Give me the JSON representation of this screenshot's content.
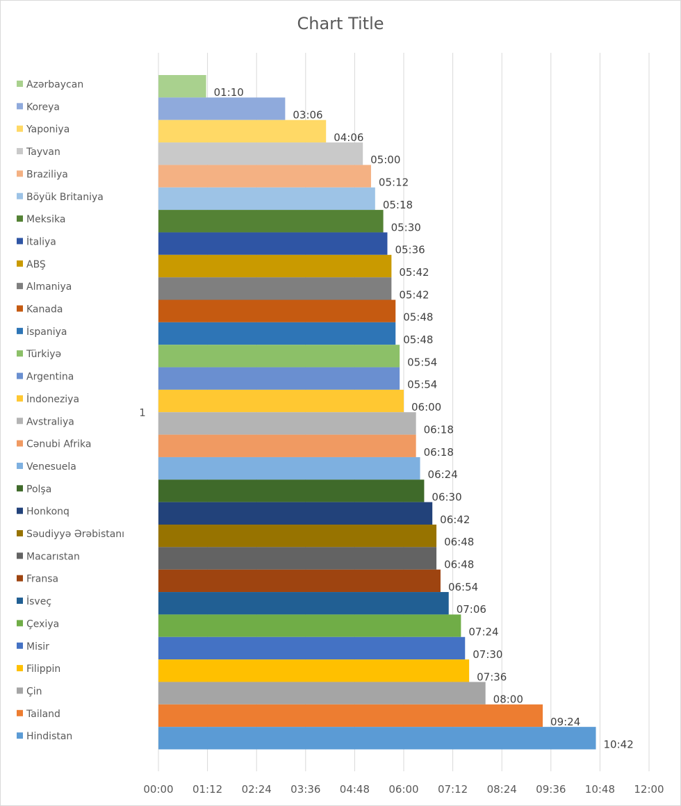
{
  "chart_data": {
    "type": "bar",
    "orientation": "horizontal",
    "title": "Chart Title",
    "category_label": "1",
    "x_unit": "mm:ss",
    "xlim": [
      "00:00",
      "12:00"
    ],
    "x_ticks": [
      "00:00",
      "01:12",
      "02:24",
      "03:36",
      "04:48",
      "06:00",
      "07:12",
      "08:24",
      "09:36",
      "10:48",
      "12:00"
    ],
    "grid": "vertical",
    "legend_position": "left",
    "series": [
      {
        "name": "Azərbaycan",
        "value": "01:10",
        "color": "#a9d18e"
      },
      {
        "name": "Koreya",
        "value": "03:06",
        "color": "#8faadc"
      },
      {
        "name": "Yaponiya",
        "value": "04:06",
        "color": "#ffd966"
      },
      {
        "name": "Tayvan",
        "value": "05:00",
        "color": "#c9c9c9"
      },
      {
        "name": "Braziliya",
        "value": "05:12",
        "color": "#f4b183"
      },
      {
        "name": "Böyük Britaniya",
        "value": "05:18",
        "color": "#9dc3e6"
      },
      {
        "name": "Meksika",
        "value": "05:30",
        "color": "#548235"
      },
      {
        "name": "İtaliya",
        "value": "05:36",
        "color": "#2f55a4"
      },
      {
        "name": "ABŞ",
        "value": "05:42",
        "color": "#c99a00"
      },
      {
        "name": "Almaniya",
        "value": "05:42",
        "color": "#7f7f7f"
      },
      {
        "name": "Kanada",
        "value": "05:48",
        "color": "#c55a11"
      },
      {
        "name": "İspaniya",
        "value": "05:48",
        "color": "#2e75b6"
      },
      {
        "name": "Türkiyə",
        "value": "05:54",
        "color": "#8cc068"
      },
      {
        "name": "Argentina",
        "value": "05:54",
        "color": "#6a8fd0"
      },
      {
        "name": "İndoneziya",
        "value": "06:00",
        "color": "#ffc832"
      },
      {
        "name": "Avstraliya",
        "value": "06:18",
        "color": "#b4b4b4"
      },
      {
        "name": "Cənubi Afrika",
        "value": "06:18",
        "color": "#f09a62"
      },
      {
        "name": "Venesuela",
        "value": "06:24",
        "color": "#7eb0e0"
      },
      {
        "name": "Polşa",
        "value": "06:30",
        "color": "#3f6a2a"
      },
      {
        "name": "Honkonq",
        "value": "06:42",
        "color": "#22427a"
      },
      {
        "name": "Səudiyyə Ərəbistanı",
        "value": "06:48",
        "color": "#977300"
      },
      {
        "name": "Macarıstan",
        "value": "06:48",
        "color": "#636363"
      },
      {
        "name": "Fransa",
        "value": "06:54",
        "color": "#9e4410"
      },
      {
        "name": "İsveç",
        "value": "07:06",
        "color": "#215f93"
      },
      {
        "name": "Çexiya",
        "value": "07:24",
        "color": "#70ad47"
      },
      {
        "name": "Misir",
        "value": "07:30",
        "color": "#4472c4"
      },
      {
        "name": "Filippin",
        "value": "07:36",
        "color": "#ffc000"
      },
      {
        "name": "Çin",
        "value": "08:00",
        "color": "#a5a5a5"
      },
      {
        "name": "Tailand",
        "value": "09:24",
        "color": "#ed7d31"
      },
      {
        "name": "Hindistan",
        "value": "10:42",
        "color": "#5b9bd5"
      }
    ]
  }
}
